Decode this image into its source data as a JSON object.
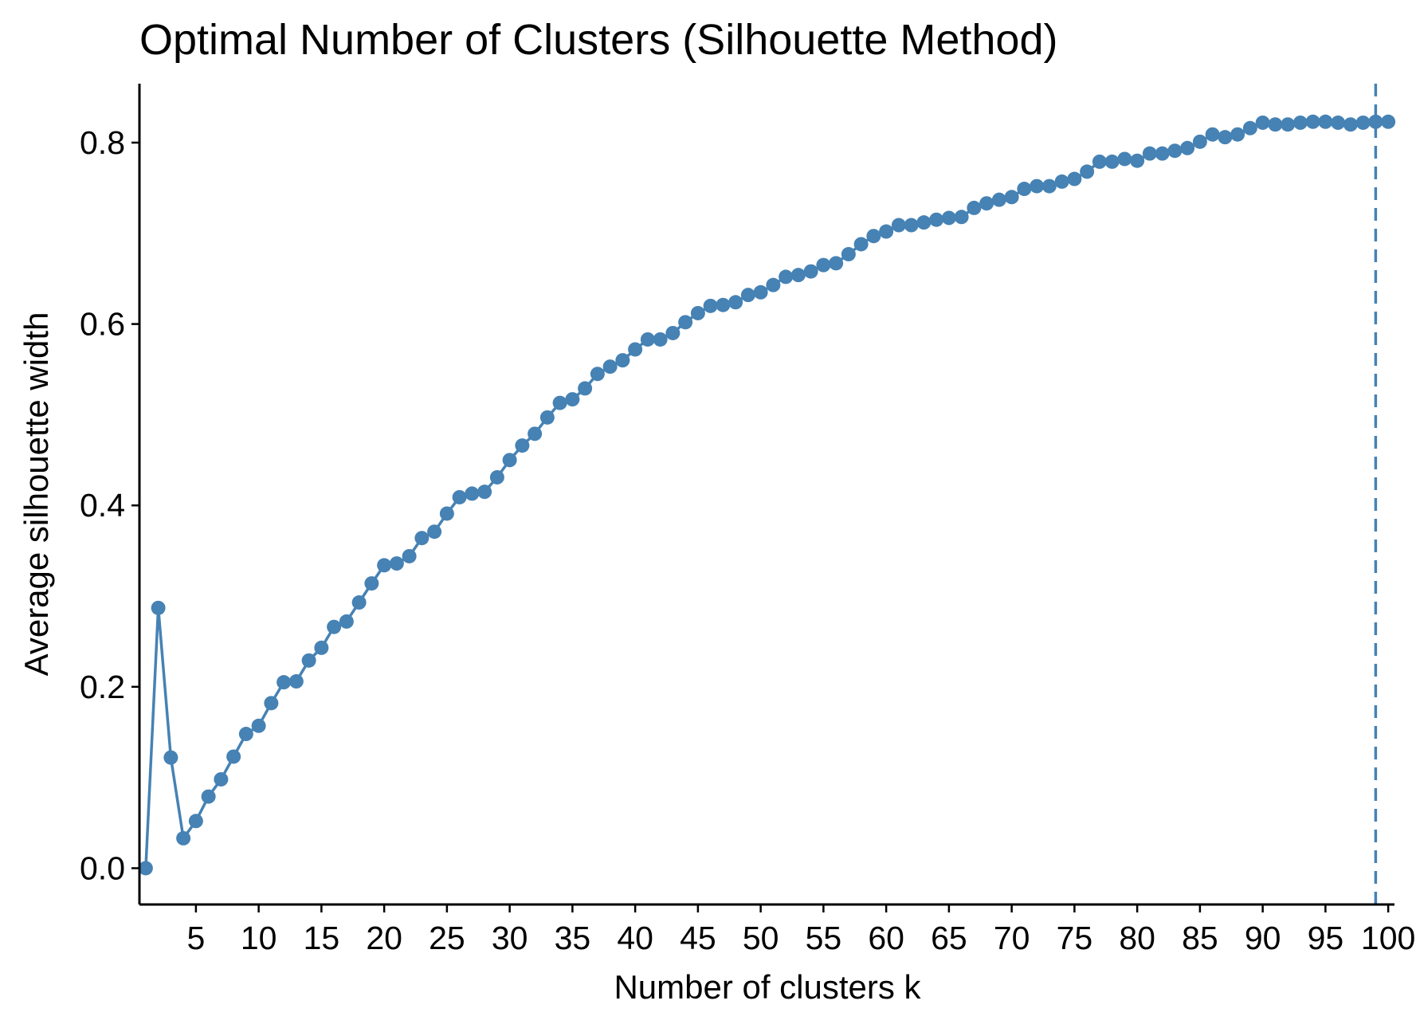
{
  "colors": {
    "series": "#4682B4",
    "axis": "#000000",
    "background": "#ffffff"
  },
  "chart_data": {
    "type": "line",
    "title": "Optimal Number of Clusters (Silhouette Method)",
    "xlabel": "Number of clusters k",
    "ylabel": "Average silhouette width",
    "xlim": [
      0.5,
      100.5
    ],
    "ylim": [
      -0.04,
      0.865
    ],
    "x_ticks": [
      5,
      10,
      15,
      20,
      25,
      30,
      35,
      40,
      45,
      50,
      55,
      60,
      65,
      70,
      75,
      80,
      85,
      90,
      95,
      100
    ],
    "x_tick_labels": [
      "5",
      "10",
      "15",
      "20",
      "25",
      "30",
      "35",
      "40",
      "45",
      "50",
      "55",
      "60",
      "65",
      "70",
      "75",
      "80",
      "85",
      "90",
      "95",
      "100"
    ],
    "y_ticks": [
      0.0,
      0.2,
      0.4,
      0.6,
      0.8
    ],
    "y_tick_labels": [
      "0.0",
      "0.2",
      "0.4",
      "0.6",
      "0.8"
    ],
    "grid": false,
    "legend": "none",
    "optimal_k": 99,
    "series": [
      {
        "values": [
          {
            "x": 1,
            "y": 0.0
          },
          {
            "x": 2,
            "y": 0.287
          },
          {
            "x": 3,
            "y": 0.122
          },
          {
            "x": 4,
            "y": 0.033
          },
          {
            "x": 5,
            "y": 0.052
          },
          {
            "x": 6,
            "y": 0.079
          },
          {
            "x": 7,
            "y": 0.098
          },
          {
            "x": 8,
            "y": 0.123
          },
          {
            "x": 9,
            "y": 0.148
          },
          {
            "x": 10,
            "y": 0.157
          },
          {
            "x": 11,
            "y": 0.182
          },
          {
            "x": 12,
            "y": 0.205
          },
          {
            "x": 13,
            "y": 0.206
          },
          {
            "x": 14,
            "y": 0.229
          },
          {
            "x": 15,
            "y": 0.243
          },
          {
            "x": 16,
            "y": 0.266
          },
          {
            "x": 17,
            "y": 0.272
          },
          {
            "x": 18,
            "y": 0.293
          },
          {
            "x": 19,
            "y": 0.314
          },
          {
            "x": 20,
            "y": 0.334
          },
          {
            "x": 21,
            "y": 0.336
          },
          {
            "x": 22,
            "y": 0.344
          },
          {
            "x": 23,
            "y": 0.364
          },
          {
            "x": 24,
            "y": 0.371
          },
          {
            "x": 25,
            "y": 0.391
          },
          {
            "x": 26,
            "y": 0.409
          },
          {
            "x": 27,
            "y": 0.413
          },
          {
            "x": 28,
            "y": 0.415
          },
          {
            "x": 29,
            "y": 0.431
          },
          {
            "x": 30,
            "y": 0.45
          },
          {
            "x": 31,
            "y": 0.466
          },
          {
            "x": 32,
            "y": 0.479
          },
          {
            "x": 33,
            "y": 0.497
          },
          {
            "x": 34,
            "y": 0.513
          },
          {
            "x": 35,
            "y": 0.517
          },
          {
            "x": 36,
            "y": 0.529
          },
          {
            "x": 37,
            "y": 0.545
          },
          {
            "x": 38,
            "y": 0.553
          },
          {
            "x": 39,
            "y": 0.56
          },
          {
            "x": 40,
            "y": 0.572
          },
          {
            "x": 41,
            "y": 0.583
          },
          {
            "x": 42,
            "y": 0.583
          },
          {
            "x": 43,
            "y": 0.59
          },
          {
            "x": 44,
            "y": 0.602
          },
          {
            "x": 45,
            "y": 0.612
          },
          {
            "x": 46,
            "y": 0.62
          },
          {
            "x": 47,
            "y": 0.621
          },
          {
            "x": 48,
            "y": 0.624
          },
          {
            "x": 49,
            "y": 0.632
          },
          {
            "x": 50,
            "y": 0.635
          },
          {
            "x": 51,
            "y": 0.643
          },
          {
            "x": 52,
            "y": 0.652
          },
          {
            "x": 53,
            "y": 0.654
          },
          {
            "x": 54,
            "y": 0.658
          },
          {
            "x": 55,
            "y": 0.665
          },
          {
            "x": 56,
            "y": 0.667
          },
          {
            "x": 57,
            "y": 0.677
          },
          {
            "x": 58,
            "y": 0.688
          },
          {
            "x": 59,
            "y": 0.697
          },
          {
            "x": 60,
            "y": 0.702
          },
          {
            "x": 61,
            "y": 0.709
          },
          {
            "x": 62,
            "y": 0.709
          },
          {
            "x": 63,
            "y": 0.712
          },
          {
            "x": 64,
            "y": 0.715
          },
          {
            "x": 65,
            "y": 0.717
          },
          {
            "x": 66,
            "y": 0.718
          },
          {
            "x": 67,
            "y": 0.728
          },
          {
            "x": 68,
            "y": 0.733
          },
          {
            "x": 69,
            "y": 0.737
          },
          {
            "x": 70,
            "y": 0.74
          },
          {
            "x": 71,
            "y": 0.749
          },
          {
            "x": 72,
            "y": 0.752
          },
          {
            "x": 73,
            "y": 0.752
          },
          {
            "x": 74,
            "y": 0.757
          },
          {
            "x": 75,
            "y": 0.76
          },
          {
            "x": 76,
            "y": 0.768
          },
          {
            "x": 77,
            "y": 0.779
          },
          {
            "x": 78,
            "y": 0.779
          },
          {
            "x": 79,
            "y": 0.782
          },
          {
            "x": 80,
            "y": 0.78
          },
          {
            "x": 81,
            "y": 0.788
          },
          {
            "x": 82,
            "y": 0.788
          },
          {
            "x": 83,
            "y": 0.791
          },
          {
            "x": 84,
            "y": 0.794
          },
          {
            "x": 85,
            "y": 0.801
          },
          {
            "x": 86,
            "y": 0.809
          },
          {
            "x": 87,
            "y": 0.806
          },
          {
            "x": 88,
            "y": 0.809
          },
          {
            "x": 89,
            "y": 0.816
          },
          {
            "x": 90,
            "y": 0.822
          },
          {
            "x": 91,
            "y": 0.82
          },
          {
            "x": 92,
            "y": 0.82
          },
          {
            "x": 93,
            "y": 0.822
          },
          {
            "x": 94,
            "y": 0.823
          },
          {
            "x": 95,
            "y": 0.823
          },
          {
            "x": 96,
            "y": 0.822
          },
          {
            "x": 97,
            "y": 0.82
          },
          {
            "x": 98,
            "y": 0.822
          },
          {
            "x": 99,
            "y": 0.823
          },
          {
            "x": 100,
            "y": 0.823
          }
        ]
      }
    ]
  }
}
